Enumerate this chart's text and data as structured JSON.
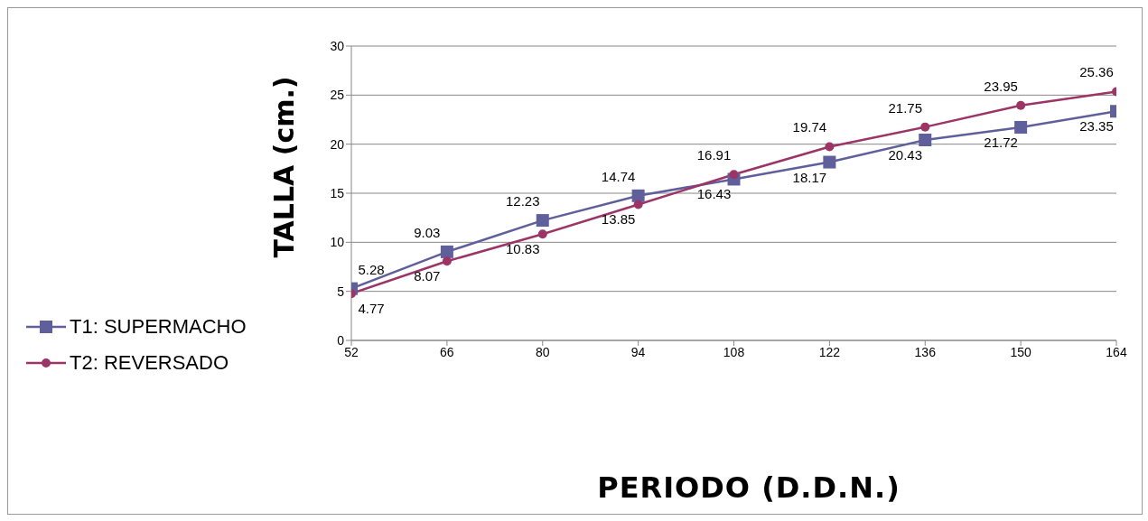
{
  "chart_data": {
    "type": "line",
    "xlabel": "PERIODO (D.D.N.)",
    "ylabel": "TALLA (cm.)",
    "x": [
      52,
      66,
      80,
      94,
      108,
      122,
      136,
      150,
      164
    ],
    "series": [
      {
        "name": "T1: SUPERMACHO",
        "color": "#5f5f9c",
        "marker": "square",
        "values": [
          5.28,
          9.03,
          12.23,
          14.74,
          16.43,
          18.17,
          20.43,
          21.72,
          23.35
        ]
      },
      {
        "name": "T2: REVERSADO",
        "color": "#9c3466",
        "marker": "circle",
        "values": [
          4.77,
          8.07,
          10.83,
          13.85,
          16.91,
          19.74,
          21.75,
          23.95,
          25.36
        ]
      }
    ],
    "xlim": [
      52,
      164
    ],
    "xticks": [
      52,
      66,
      80,
      94,
      108,
      122,
      136,
      150,
      164
    ],
    "ylim": [
      0,
      30
    ],
    "yticks": [
      0,
      5,
      10,
      15,
      20,
      25,
      30
    ],
    "grid": "y",
    "legend": "left",
    "data_labels": true,
    "line_style": "solid"
  }
}
